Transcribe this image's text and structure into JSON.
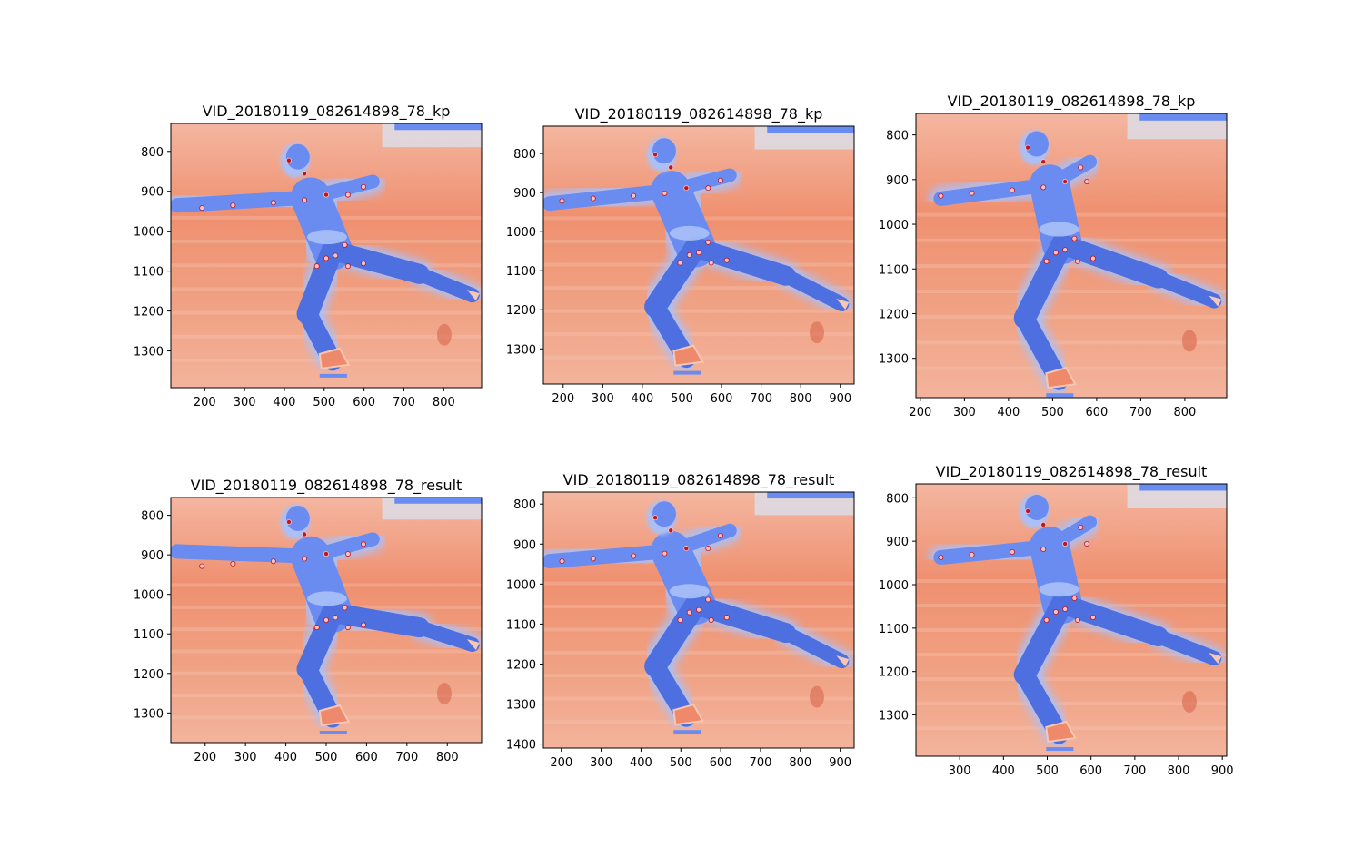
{
  "figure": {
    "colors": {
      "background_warm": "#ee8a6b",
      "background_light": "#f3b29a",
      "background_pale": "#f7c7b3",
      "subject_cool": "#4d6fe0",
      "subject_mid": "#6a8cf0",
      "subject_light": "#aac0f7",
      "rink_wall": "#dcdde6",
      "keypoint_dark": "#c0151b",
      "keypoint_light": "#f2c2c6"
    },
    "panels": [
      {
        "title": "VID_20180119_082614898_78_kp",
        "xticks": [
          "200",
          "300",
          "400",
          "500",
          "600",
          "700",
          "800"
        ],
        "yticks": [
          "800",
          "900",
          "1000",
          "1100",
          "1200",
          "1300"
        ],
        "xlim": [
          115,
          895
        ],
        "ylim": [
          730,
          1392
        ]
      },
      {
        "title": "VID_20180119_082614898_78_kp",
        "xticks": [
          "200",
          "300",
          "400",
          "500",
          "600",
          "700",
          "800",
          "900"
        ],
        "yticks": [
          "800",
          "900",
          "1000",
          "1100",
          "1200",
          "1300"
        ],
        "xlim": [
          150,
          935
        ],
        "ylim": [
          730,
          1390
        ]
      },
      {
        "title": "VID_20180119_082614898_78_kp",
        "xticks": [
          "200",
          "300",
          "400",
          "500",
          "600",
          "700",
          "800"
        ],
        "yticks": [
          "800",
          "900",
          "1000",
          "1100",
          "1200",
          "1300"
        ],
        "xlim": [
          190,
          895
        ],
        "ylim": [
          752,
          1388
        ]
      },
      {
        "title": "VID_20180119_082614898_78_result",
        "xticks": [
          "200",
          "300",
          "400",
          "500",
          "600",
          "700",
          "800"
        ],
        "yticks": [
          "800",
          "900",
          "1000",
          "1100",
          "1200",
          "1300"
        ],
        "xlim": [
          115,
          885
        ],
        "ylim": [
          755,
          1375
        ]
      },
      {
        "title": "VID_20180119_082614898_78_result",
        "xticks": [
          "200",
          "300",
          "400",
          "500",
          "600",
          "700",
          "800",
          "900"
        ],
        "yticks": [
          "800",
          "900",
          "1000",
          "1100",
          "1200",
          "1300",
          "1400"
        ],
        "xlim": [
          155,
          935
        ],
        "ylim": [
          770,
          1410
        ]
      },
      {
        "title": "VID_20180119_082614898_78_result",
        "xticks": [
          "300",
          "400",
          "500",
          "600",
          "700",
          "800",
          "900"
        ],
        "yticks": [
          "800",
          "900",
          "1000",
          "1100",
          "1200",
          "1300"
        ],
        "xlim": [
          200,
          910
        ],
        "ylim": [
          768,
          1395
        ]
      }
    ]
  }
}
